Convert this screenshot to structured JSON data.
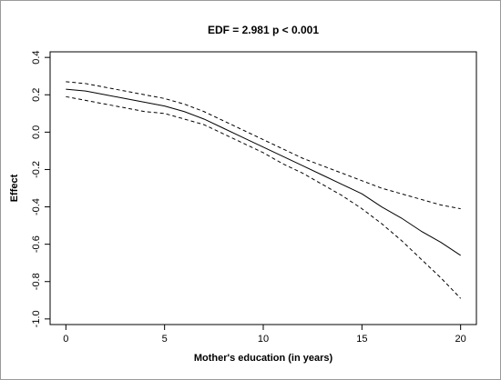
{
  "chart_data": {
    "type": "line",
    "title": "EDF = 2.981 p < 0.001",
    "xlabel": "Mother's education (in years)",
    "ylabel": "Effect",
    "xlim": [
      -0.8,
      20.8
    ],
    "ylim": [
      -1.03,
      0.43
    ],
    "x_ticks": [
      0,
      5,
      10,
      15,
      20
    ],
    "x_tick_labels": [
      "0",
      "5",
      "10",
      "15",
      "20"
    ],
    "y_ticks": [
      0.4,
      0.2,
      0.0,
      -0.2,
      -0.4,
      -0.6,
      -0.8,
      -1.0
    ],
    "y_tick_labels": [
      "0.4",
      "0.2",
      "0.0",
      "-0.2",
      "-0.4",
      "-0.6",
      "-0.8",
      "-1.0"
    ],
    "grid": false,
    "legend": "none",
    "series": [
      {
        "style": "solid",
        "x": [
          0,
          1,
          2,
          3,
          4,
          5,
          6,
          7,
          8,
          9,
          10,
          11,
          12,
          13,
          14,
          15,
          16,
          17,
          18,
          19,
          20
        ],
        "y": [
          0.23,
          0.22,
          0.2,
          0.18,
          0.16,
          0.14,
          0.11,
          0.07,
          0.02,
          -0.03,
          -0.08,
          -0.13,
          -0.18,
          -0.23,
          -0.28,
          -0.33,
          -0.4,
          -0.46,
          -0.53,
          -0.59,
          -0.66
        ]
      },
      {
        "style": "dashed",
        "x": [
          0,
          1,
          2,
          3,
          4,
          5,
          6,
          7,
          8,
          9,
          10,
          11,
          12,
          13,
          14,
          15,
          16,
          17,
          18,
          19,
          20
        ],
        "y": [
          0.27,
          0.26,
          0.24,
          0.22,
          0.2,
          0.18,
          0.15,
          0.11,
          0.06,
          0.01,
          -0.04,
          -0.09,
          -0.14,
          -0.18,
          -0.22,
          -0.26,
          -0.3,
          -0.33,
          -0.36,
          -0.39,
          -0.41
        ]
      },
      {
        "style": "dashed",
        "x": [
          0,
          1,
          2,
          3,
          4,
          5,
          6,
          7,
          8,
          9,
          10,
          11,
          12,
          13,
          14,
          15,
          16,
          17,
          18,
          19,
          20
        ],
        "y": [
          0.19,
          0.17,
          0.15,
          0.13,
          0.11,
          0.1,
          0.07,
          0.04,
          -0.01,
          -0.06,
          -0.11,
          -0.17,
          -0.22,
          -0.28,
          -0.34,
          -0.41,
          -0.49,
          -0.58,
          -0.68,
          -0.78,
          -0.89
        ]
      }
    ]
  },
  "colors": {
    "line": "#000000",
    "axis": "#000000",
    "frame": "#9a9a9a",
    "background": "#ffffff"
  }
}
